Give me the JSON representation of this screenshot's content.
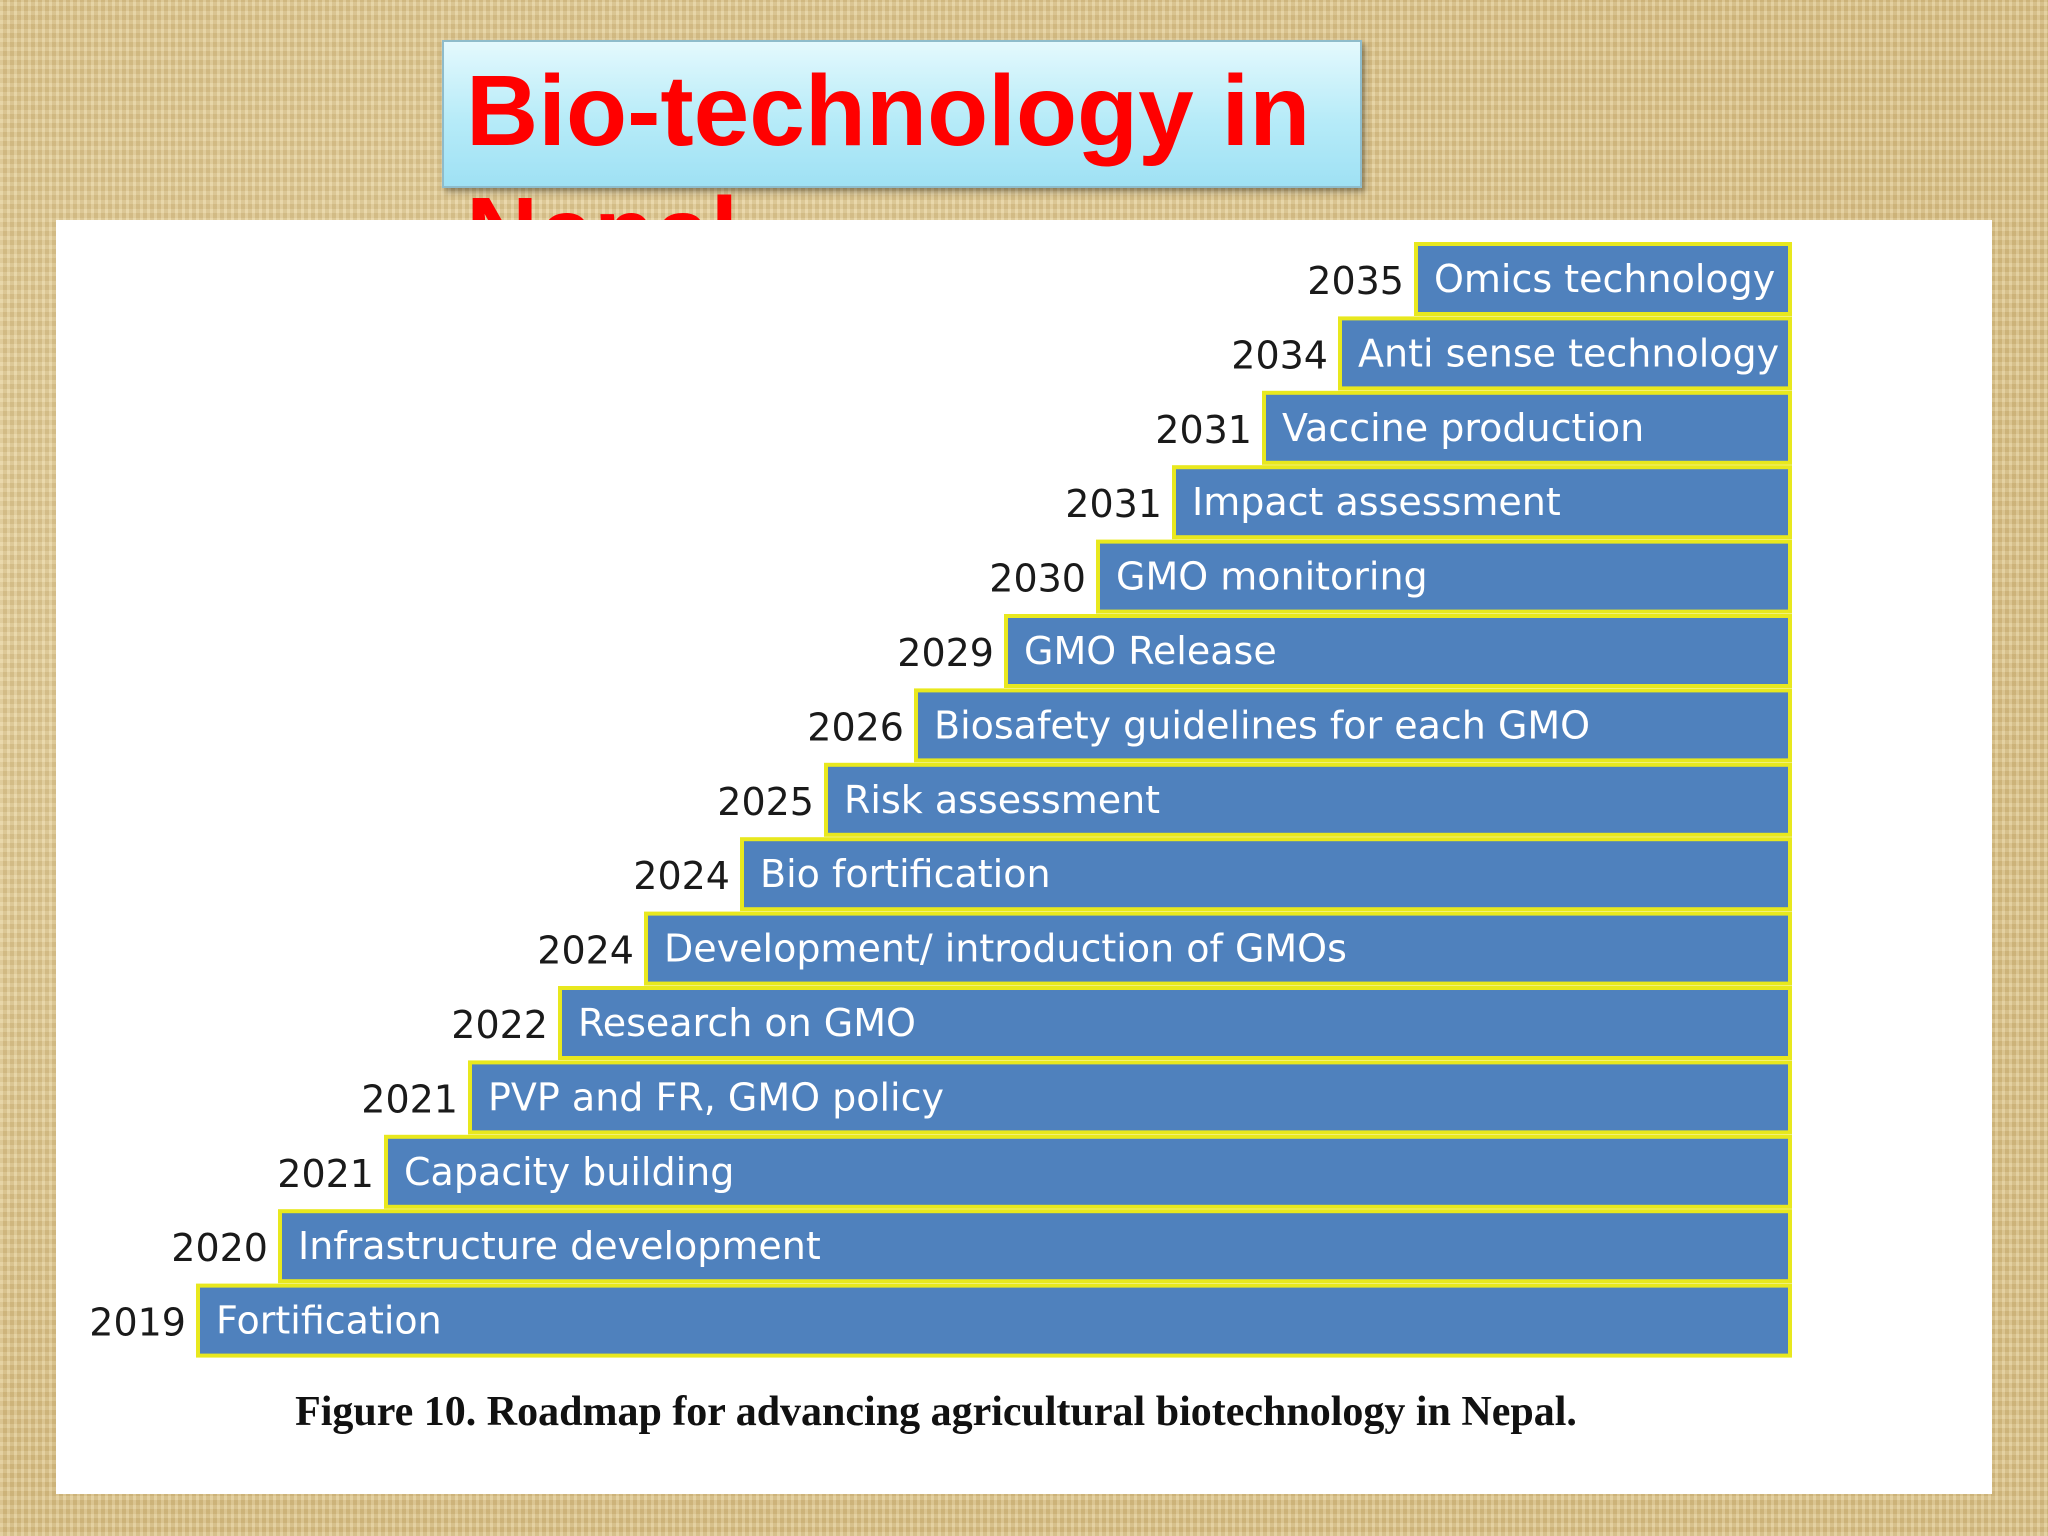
{
  "slide": {
    "title": "Bio-technology in Nepal",
    "caption": "Figure 10. Roadmap for advancing agricultural biotechnology in Nepal."
  },
  "colors": {
    "bar_fill": "#4f81bd",
    "bar_border": "#e8e81e",
    "title_text": "#ff0000",
    "title_box": "#b6ebf8"
  },
  "roadmap": {
    "steps": [
      {
        "year": "2035",
        "label": "Omics technology"
      },
      {
        "year": "2034",
        "label": "Anti sense technology"
      },
      {
        "year": "2031",
        "label": "Vaccine production"
      },
      {
        "year": "2031",
        "label": "Impact assessment"
      },
      {
        "year": "2030",
        "label": "GMO monitoring"
      },
      {
        "year": "2029",
        "label": "GMO Release"
      },
      {
        "year": "2026",
        "label": "Biosafety guidelines for each GMO"
      },
      {
        "year": "2025",
        "label": "Risk assessment"
      },
      {
        "year": "2024",
        "label": "Bio fortification"
      },
      {
        "year": "2024",
        "label": "Development/ introduction of GMOs"
      },
      {
        "year": "2022",
        "label": "Research on GMO"
      },
      {
        "year": "2021",
        "label": "PVP and FR, GMO policy"
      },
      {
        "year": "2021",
        "label": "Capacity building"
      },
      {
        "year": "2020",
        "label": "Infrastructure development"
      },
      {
        "year": "2019",
        "label": "Fortification"
      }
    ]
  }
}
